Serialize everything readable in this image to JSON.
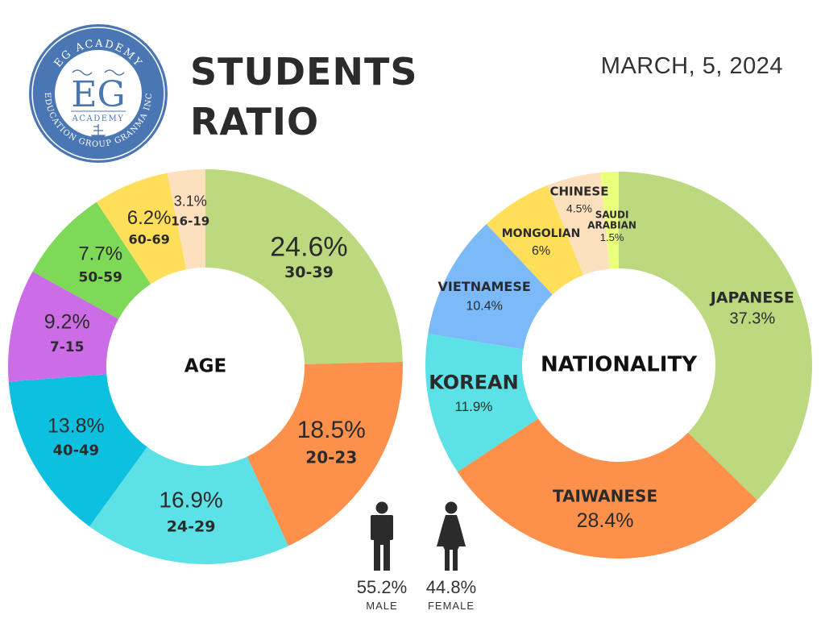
{
  "header": {
    "title_line1": "STUDENTS",
    "title_line2": "RATIO",
    "date": "MARCH, 5, 2024"
  },
  "logo": {
    "arc_top": "EG ACADEMY",
    "monogram": "EG",
    "name": "ACADEMY",
    "arc_bottom": "EDUCATION GROUP GRANMA INC",
    "color": "#4a77b3"
  },
  "gender": {
    "male": {
      "pct": "55.2%",
      "label": "MALE",
      "value": 55.2
    },
    "female": {
      "pct": "44.8%",
      "label": "FEMALE",
      "value": 44.8
    }
  },
  "chart_data": [
    {
      "type": "pie",
      "center_label": "AGE",
      "slices": [
        {
          "label": "30-39",
          "value": 24.6,
          "pct": "24.6%",
          "color": "#bdd97f"
        },
        {
          "label": "20-23",
          "value": 18.5,
          "pct": "18.5%",
          "color": "#fd914c"
        },
        {
          "label": "24-29",
          "value": 16.9,
          "pct": "16.9%",
          "color": "#5ce1e6"
        },
        {
          "label": "40-49",
          "value": 13.8,
          "pct": "13.8%",
          "color": "#0dc0df"
        },
        {
          "label": "7-15",
          "value": 9.2,
          "pct": "9.2%",
          "color": "#cc6ce7"
        },
        {
          "label": "50-59",
          "value": 7.7,
          "pct": "7.7%",
          "color": "#7ed957"
        },
        {
          "label": "60-69",
          "value": 6.2,
          "pct": "6.2%",
          "color": "#ffde59"
        },
        {
          "label": "16-19",
          "value": 3.1,
          "pct": "3.1%",
          "color": "#fde0bd"
        }
      ]
    },
    {
      "type": "pie",
      "center_label": "NATIONALITY",
      "slices": [
        {
          "label": "JAPANESE",
          "value": 37.3,
          "pct": "37.3%",
          "color": "#bdd97f"
        },
        {
          "label": "TAIWANESE",
          "value": 28.4,
          "pct": "28.4%",
          "color": "#fd914c"
        },
        {
          "label": "KOREAN",
          "value": 11.9,
          "pct": "11.9%",
          "color": "#5ce1e6"
        },
        {
          "label": "VIETNAMESE",
          "value": 10.4,
          "pct": "10.4%",
          "color": "#7cb9f8"
        },
        {
          "label": "MONGOLIAN",
          "value": 6,
          "pct": "6%",
          "color": "#ffde59"
        },
        {
          "label": "CHINESE",
          "value": 4.5,
          "pct": "4.5%",
          "color": "#fde0bd"
        },
        {
          "label": "SAUDI ARABIAN",
          "value": 1.5,
          "pct": "1.5%",
          "color": "#eaff7c"
        }
      ]
    }
  ]
}
